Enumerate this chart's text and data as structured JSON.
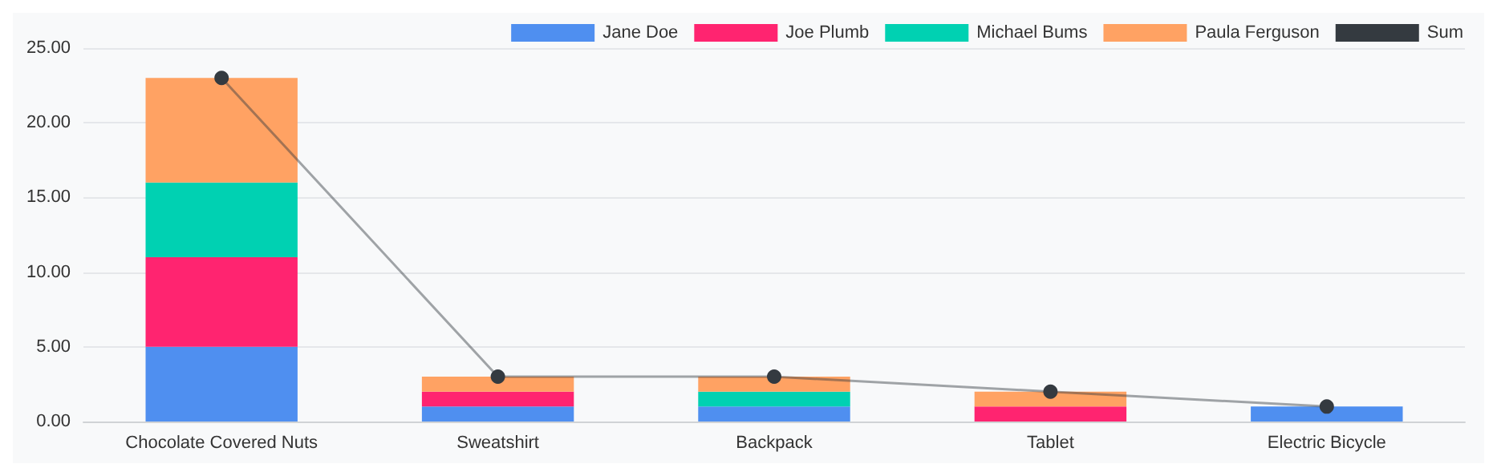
{
  "chart_data": {
    "type": "bar",
    "stacked": true,
    "categories": [
      "Chocolate Covered Nuts",
      "Sweatshirt",
      "Backpack",
      "Tablet",
      "Electric Bicycle"
    ],
    "series": [
      {
        "name": "Jane Doe",
        "color": "#4f8ff0",
        "values": [
          5,
          1,
          1,
          0,
          1
        ]
      },
      {
        "name": "Joe Plumb",
        "color": "#ff2470",
        "values": [
          6,
          1,
          0,
          1,
          0
        ]
      },
      {
        "name": "Michael Bums",
        "color": "#00d1b2",
        "values": [
          5,
          0,
          1,
          0,
          0
        ]
      },
      {
        "name": "Paula Ferguson",
        "color": "#ffa263",
        "values": [
          7,
          1,
          1,
          1,
          0
        ]
      },
      {
        "name": "Sum",
        "type": "line",
        "color": "#343a40",
        "values": [
          23,
          3,
          3,
          2,
          1
        ],
        "marker": "circle"
      }
    ],
    "ylim": [
      0,
      25
    ],
    "yticks": [
      {
        "value": 0,
        "label": "0.00"
      },
      {
        "value": 5,
        "label": "5.00"
      },
      {
        "value": 10,
        "label": "10.00"
      },
      {
        "value": 15,
        "label": "15.00"
      },
      {
        "value": 20,
        "label": "20.00"
      },
      {
        "value": 25,
        "label": "25.00"
      }
    ],
    "grid": "y",
    "legend": "top right"
  }
}
